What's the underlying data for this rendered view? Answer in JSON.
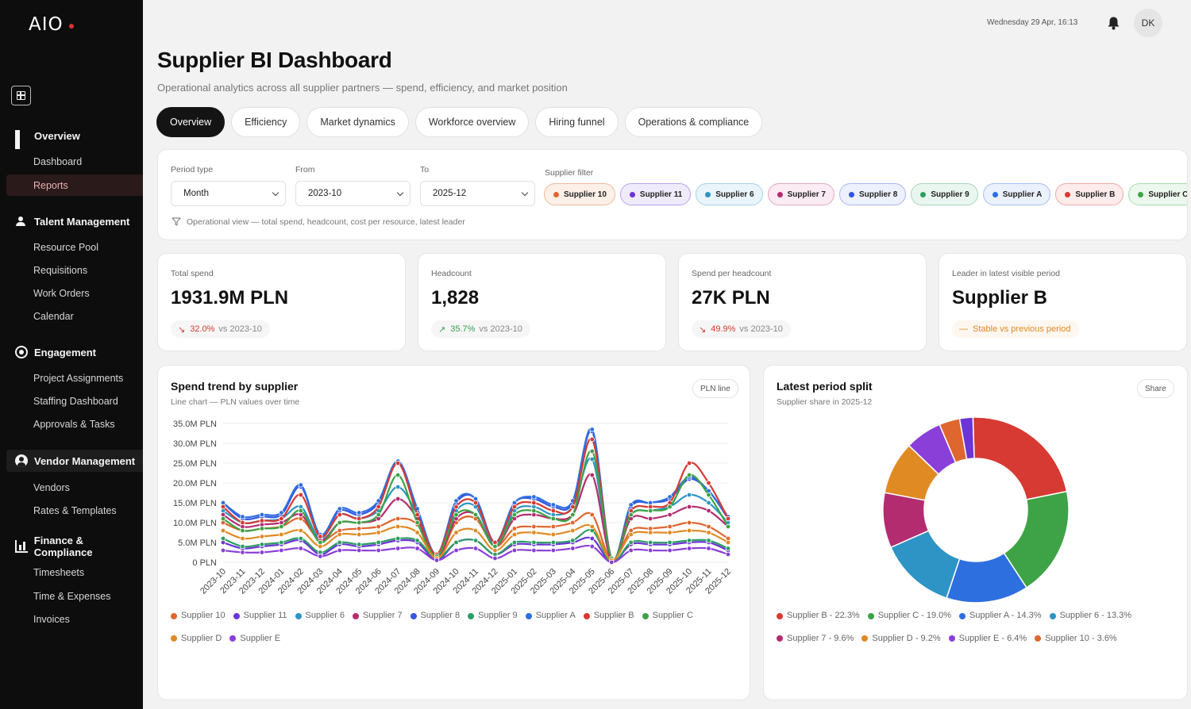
{
  "app": {
    "logo": "AIO"
  },
  "sidebar": {
    "groups": [
      {
        "label": "Overview",
        "icon": "grid-icon",
        "items": [
          "Dashboard",
          "Reports"
        ]
      },
      {
        "label": "Talent Management",
        "icon": "people-icon",
        "items": [
          "Resource Pool",
          "Requisitions",
          "Work Orders",
          "Calendar"
        ]
      },
      {
        "label": "Engagement",
        "icon": "target-icon",
        "items": [
          "Project Assignments",
          "Staffing Dashboard",
          "Approvals & Tasks"
        ]
      },
      {
        "label": "Vendor Management",
        "icon": "user-circle-icon",
        "items": [
          "Vendors",
          "Rates & Templates"
        ]
      },
      {
        "label": "Finance & Compliance",
        "icon": "bar-chart-icon",
        "items": [
          "Timesheets",
          "Time & Expenses",
          "Invoices"
        ]
      }
    ],
    "active_item": "Reports"
  },
  "header": {
    "datetime": "Wednesday 29 Apr, 16:13",
    "avatar_initials": "DK"
  },
  "page": {
    "title": "Supplier BI Dashboard",
    "subtitle": "Operational analytics across all supplier partners — spend, efficiency, and market position"
  },
  "tabs": [
    "Overview",
    "Efficiency",
    "Market dynamics",
    "Workforce overview",
    "Hiring funnel",
    "Operations & compliance"
  ],
  "filters": {
    "period_type": {
      "label": "Period type",
      "value": "Month"
    },
    "from": {
      "label": "From",
      "value": "2023-10"
    },
    "to": {
      "label": "To",
      "value": "2025-12"
    },
    "supplier_filter_label": "Supplier filter",
    "chips": [
      {
        "name": "Supplier 10",
        "color": "#e0662f",
        "bg": "#fdf0e8",
        "border": "#f0b899"
      },
      {
        "name": "Supplier 11",
        "color": "#6b35d8",
        "bg": "#f0ebfc",
        "border": "#b9a3ee"
      },
      {
        "name": "Supplier 6",
        "color": "#2e94c5",
        "bg": "#e9f5fb",
        "border": "#a6d3e8"
      },
      {
        "name": "Supplier 7",
        "color": "#b32c70",
        "bg": "#fbebf3",
        "border": "#e3a6c4"
      },
      {
        "name": "Supplier 8",
        "color": "#3555e0",
        "bg": "#edf0fd",
        "border": "#a9b7f0"
      },
      {
        "name": "Supplier 9",
        "color": "#2e9e63",
        "bg": "#e9f6ef",
        "border": "#a2d7b9"
      },
      {
        "name": "Supplier A",
        "color": "#2e6fe0",
        "bg": "#ebf1fd",
        "border": "#a4c0f0"
      },
      {
        "name": "Supplier B",
        "color": "#d63a33",
        "bg": "#fdeceb",
        "border": "#efa9a5"
      },
      {
        "name": "Supplier C",
        "color": "#3da346",
        "bg": "#ecf7ed",
        "border": "#a9dbad"
      }
    ],
    "note": "Operational view — total spend, headcount, cost per resource, latest leader"
  },
  "kpis": [
    {
      "label": "Total spend",
      "value": "1931.9M PLN",
      "change": "32.0%",
      "compare": "vs 2023-10",
      "trend": "down",
      "color": "#d23c2c"
    },
    {
      "label": "Headcount",
      "value": "1,828",
      "change": "35.7%",
      "compare": "vs 2023-10",
      "trend": "up",
      "color": "#3a9e57"
    },
    {
      "label": "Spend per headcount",
      "value": "27K PLN",
      "change": "49.9%",
      "compare": "vs 2023-10",
      "trend": "down",
      "color": "#d23c2c"
    },
    {
      "label": "Leader in latest visible period",
      "value": "Supplier B",
      "change": "",
      "compare": "Stable vs previous period",
      "trend": "flat",
      "color": "#e08a24"
    }
  ],
  "line_card": {
    "title": "Spend trend by supplier",
    "subtitle": "Line chart — PLN values over time",
    "badge": "PLN line"
  },
  "pie_card": {
    "title": "Latest period split",
    "subtitle": "Supplier share in 2025-12",
    "badge": "Share"
  },
  "chart_data": [
    {
      "type": "line",
      "title": "Spend trend by supplier",
      "ylim": [
        0,
        35
      ],
      "yticks": [
        "0 PLN",
        "5.0M PLN",
        "10.0M PLN",
        "15.0M PLN",
        "20.0M PLN",
        "25.0M PLN",
        "30.0M PLN",
        "35.0M PLN"
      ],
      "x": [
        "2023-10",
        "2023-11",
        "2023-12",
        "2024-01",
        "2024-02",
        "2024-03",
        "2024-04",
        "2024-05",
        "2024-06",
        "2024-07",
        "2024-08",
        "2024-09",
        "2024-10",
        "2024-11",
        "2024-12",
        "2025-01",
        "2025-02",
        "2025-03",
        "2025-04",
        "2025-05",
        "2025-06",
        "2025-07",
        "2025-08",
        "2025-09",
        "2025-10",
        "2025-11",
        "2025-12"
      ],
      "unit": "M PLN",
      "series": [
        {
          "name": "Supplier 10",
          "color": "#e0662f",
          "values": [
            10,
            8,
            8.5,
            9,
            11,
            5.5,
            8,
            8.5,
            9,
            11,
            9.5,
            1,
            10,
            11,
            4,
            8.5,
            9,
            9,
            10,
            12,
            0.5,
            8,
            8.5,
            9,
            10,
            9,
            6
          ]
        },
        {
          "name": "Supplier 11",
          "color": "#6b35d8",
          "values": [
            5,
            3.5,
            4,
            4.5,
            5.5,
            2,
            4.5,
            4,
            4.5,
            5.5,
            5,
            0.5,
            5,
            5.5,
            2,
            4.5,
            4.5,
            4.5,
            5,
            6,
            0,
            4.5,
            4.5,
            4.5,
            5,
            5,
            3
          ]
        },
        {
          "name": "Supplier 6",
          "color": "#2e94c5",
          "values": [
            13,
            10,
            10.5,
            11,
            14,
            6,
            12,
            11,
            13,
            19,
            12,
            1.5,
            13,
            14,
            4.5,
            13,
            14,
            12,
            14,
            26,
            1,
            12,
            13,
            14,
            17,
            15,
            10
          ]
        },
        {
          "name": "Supplier 7",
          "color": "#b32c70",
          "values": [
            12,
            9,
            9.5,
            10,
            12,
            5.5,
            10,
            10,
            11,
            16,
            11,
            1,
            11,
            12,
            4,
            11,
            12,
            11,
            12,
            22,
            0.5,
            11,
            11,
            12,
            14,
            13,
            9
          ]
        },
        {
          "name": "Supplier 8",
          "color": "#3555e0",
          "values": [
            15,
            11,
            11.5,
            12,
            19,
            7,
            13,
            12,
            15,
            25,
            13,
            2,
            15,
            16,
            5,
            15,
            16,
            14,
            15,
            33,
            1,
            14,
            15,
            16,
            21,
            18,
            11
          ]
        },
        {
          "name": "Supplier 9",
          "color": "#2e9e63",
          "values": [
            6,
            4,
            4.5,
            5,
            6,
            2.5,
            5,
            4.5,
            5,
            6,
            5.5,
            1,
            5,
            5.5,
            2,
            5,
            5,
            5,
            5.5,
            8,
            0,
            5,
            5,
            5,
            5.5,
            5.5,
            3.5
          ]
        },
        {
          "name": "Supplier A",
          "color": "#2e6fe0",
          "values": [
            15,
            11.5,
            12,
            12.5,
            19.5,
            7,
            13.5,
            12.5,
            15.5,
            25.5,
            13.5,
            2,
            15.5,
            16,
            5,
            15,
            16.5,
            14.5,
            15.5,
            33.5,
            1,
            14.5,
            15,
            16.5,
            21.5,
            18,
            11.5
          ]
        },
        {
          "name": "Supplier B",
          "color": "#d63a33",
          "values": [
            14,
            10,
            10.5,
            11,
            17,
            6.5,
            12,
            11,
            14,
            25,
            12,
            2,
            14,
            15,
            5,
            14,
            15,
            13,
            14,
            31,
            1,
            13,
            14,
            15,
            25,
            20,
            11
          ]
        },
        {
          "name": "Supplier C",
          "color": "#3da346",
          "values": [
            11,
            8,
            8.5,
            9,
            13,
            5,
            10,
            10,
            12,
            22,
            10,
            1.5,
            12,
            12,
            4,
            12,
            13,
            11,
            12,
            28,
            1,
            12,
            13,
            14,
            22,
            17,
            9
          ]
        },
        {
          "name": "Supplier D",
          "color": "#e08a24",
          "values": [
            8,
            6,
            6.5,
            7,
            8,
            4,
            7,
            7,
            7.5,
            9,
            7.5,
            1,
            7.5,
            8,
            3,
            7,
            7.5,
            7,
            8,
            9,
            0.5,
            7,
            7.5,
            7.5,
            8,
            7.5,
            5
          ]
        },
        {
          "name": "Supplier E",
          "color": "#8a3fd8",
          "values": [
            3,
            2.5,
            2.5,
            3,
            3.5,
            1.5,
            3,
            3,
            3,
            3.5,
            3.5,
            0.5,
            3,
            3.5,
            1,
            3,
            3,
            3,
            3.5,
            4,
            0,
            3,
            3,
            3,
            3.5,
            3.5,
            2
          ]
        }
      ]
    },
    {
      "type": "pie",
      "title": "Latest period split",
      "donut": true,
      "slices": [
        {
          "name": "Supplier B",
          "value": 22.3,
          "label": "Supplier B - 22.3%",
          "color": "#d63a33"
        },
        {
          "name": "Supplier C",
          "value": 19.0,
          "label": "Supplier C - 19.0%",
          "color": "#3da346"
        },
        {
          "name": "Supplier A",
          "value": 14.3,
          "label": "Supplier A - 14.3%",
          "color": "#2e6fe0"
        },
        {
          "name": "Supplier 6",
          "value": 13.3,
          "label": "Supplier 6 - 13.3%",
          "color": "#2e94c5"
        },
        {
          "name": "Supplier 7",
          "value": 9.6,
          "label": "Supplier 7 - 9.6%",
          "color": "#b32c70"
        },
        {
          "name": "Supplier D",
          "value": 9.2,
          "label": "Supplier D - 9.2%",
          "color": "#e08a24"
        },
        {
          "name": "Supplier E",
          "value": 6.4,
          "label": "Supplier E - 6.4%",
          "color": "#8a3fd8"
        },
        {
          "name": "Supplier 10",
          "value": 3.6,
          "label": "Supplier 10 - 3.6%",
          "color": "#e0662f"
        },
        {
          "name": "Supplier 11",
          "value": 2.3,
          "label": "",
          "color": "#6b35d8"
        }
      ]
    }
  ]
}
